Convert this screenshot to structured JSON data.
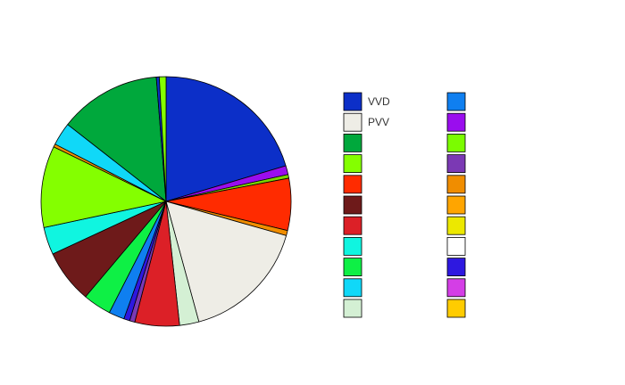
{
  "chart_data": {
    "type": "pie",
    "title": "",
    "legend_position": "right",
    "slices": [
      {
        "label": "VVD",
        "value": 21.2,
        "color": "#0c2fc8"
      },
      {
        "label": "",
        "value": 1.2,
        "color": "#9a0dee"
      },
      {
        "label": "",
        "value": 0.5,
        "color": "#7bd600"
      },
      {
        "label": "",
        "value": 7.0,
        "color": "#ff2b00"
      },
      {
        "label": "",
        "value": 0.7,
        "color": "#f08d00"
      },
      {
        "label": "PVV",
        "value": 17.0,
        "color": "#eeede6"
      },
      {
        "label": "",
        "value": 2.6,
        "color": "#d4f0d4"
      },
      {
        "label": "",
        "value": 6.0,
        "color": "#dc2027"
      },
      {
        "label": "",
        "value": 0.7,
        "color": "#7b39b4"
      },
      {
        "label": "",
        "value": 0.8,
        "color": "#2e18e0"
      },
      {
        "label": "",
        "value": 2.1,
        "color": "#0f7ff0"
      },
      {
        "label": "",
        "value": 3.8,
        "color": "#0ef045"
      },
      {
        "label": "",
        "value": 7.2,
        "color": "#6e1a1a"
      },
      {
        "label": "",
        "value": 3.7,
        "color": "#10f5e0"
      },
      {
        "label": "",
        "value": 11.0,
        "color": "#84ff00"
      },
      {
        "label": "",
        "value": 0.4,
        "color": "#f09000"
      },
      {
        "label": "",
        "value": 3.1,
        "color": "#10d8f8"
      },
      {
        "label": "",
        "value": 13.7,
        "color": "#00a83c"
      },
      {
        "label": "",
        "value": 0.4,
        "color": "#0c2fc8"
      },
      {
        "label": "",
        "value": 0.9,
        "color": "#84ff00"
      }
    ],
    "legend": {
      "columns": [
        [
          {
            "label": "VVD",
            "color": "#0c2fc8"
          },
          {
            "label": "PVV",
            "color": "#eeede6"
          },
          {
            "label": "",
            "color": "#00a83c"
          },
          {
            "label": "",
            "color": "#84ff00"
          },
          {
            "label": "",
            "color": "#ff2b00"
          },
          {
            "label": "",
            "color": "#6e1a1a"
          },
          {
            "label": "",
            "color": "#dc2027"
          },
          {
            "label": "",
            "color": "#10f5e0"
          },
          {
            "label": "",
            "color": "#0ef045"
          },
          {
            "label": "",
            "color": "#10d8f8"
          },
          {
            "label": "",
            "color": "#d4f0d4"
          }
        ],
        [
          {
            "label": "",
            "color": "#0f7ff0"
          },
          {
            "label": "",
            "color": "#9a0dee"
          },
          {
            "label": "",
            "color": "#7bfc00"
          },
          {
            "label": "",
            "color": "#7b39b4"
          },
          {
            "label": "",
            "color": "#f08d00"
          },
          {
            "label": "",
            "color": "#ffa500"
          },
          {
            "label": "",
            "color": "#ece800"
          },
          {
            "label": "",
            "color": "#ffffff"
          },
          {
            "label": "",
            "color": "#2e18e0"
          },
          {
            "label": "",
            "color": "#d43ee6"
          },
          {
            "label": "",
            "color": "#ffcc00"
          }
        ]
      ]
    }
  }
}
